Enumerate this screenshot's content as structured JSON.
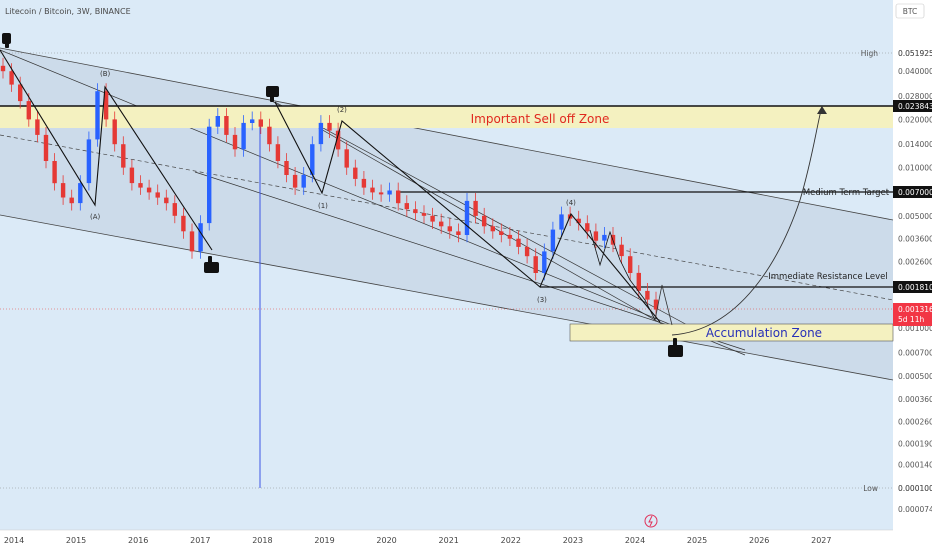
{
  "header": {
    "title": "Litecoin / Bitcoin, 3W, BINANCE",
    "currency_badge": "BTC"
  },
  "price_axis": {
    "ticks": [
      "0.051925",
      "0.040000",
      "0.028000",
      "0.020000",
      "0.014000",
      "0.010000",
      "0.005000",
      "0.003600",
      "0.002600",
      "0.001000",
      "0.000700",
      "0.000500",
      "0.000360",
      "0.000260",
      "0.000190",
      "0.000140",
      "0.000100",
      "0.000074"
    ],
    "high": {
      "label": "High",
      "value": "0.051925"
    },
    "low": {
      "label": "Low",
      "value": "0.000100"
    },
    "sell_zone_top": "0.023843",
    "medium_target": "0.007000",
    "resistance": "0.001810",
    "current": {
      "price": "0.001316",
      "countdown": "5d 11h"
    }
  },
  "time_axis": [
    "2014",
    "2015",
    "2016",
    "2017",
    "2018",
    "2019",
    "2020",
    "2021",
    "2022",
    "2023",
    "2024",
    "2025",
    "2026",
    "2027"
  ],
  "annotations": {
    "sell_zone": "Important Sell off Zone",
    "accumulation_zone": "Accumulation Zone",
    "medium_term_target": "Medium Term Target",
    "immediate_resistance": "Immediate Resistance Level",
    "waves": [
      "(B)",
      "(A)",
      "(2)",
      "(1)",
      "(4)",
      "(3)"
    ]
  },
  "colors": {
    "up": "#2962ff",
    "down": "#e53935",
    "zone": "#f4f1c0",
    "channel": "#c7d6e6",
    "background": "#dbeaf7"
  },
  "chart_data": {
    "type": "candlestick",
    "series": [
      {
        "values": [
          0.04,
          0.033,
          0.026,
          0.02,
          0.016,
          0.011,
          0.008,
          0.0065,
          0.006,
          0.008,
          0.015,
          0.03,
          0.02,
          0.014,
          0.01,
          0.008,
          0.0075,
          0.007,
          0.0065,
          0.006,
          0.005,
          0.004,
          0.003,
          0.0045,
          0.018,
          0.021,
          0.016,
          0.013,
          0.019,
          0.02,
          0.018,
          0.014,
          0.011,
          0.009,
          0.0075,
          0.009,
          0.014,
          0.019,
          0.017,
          0.013,
          0.01,
          0.0085,
          0.0075,
          0.007,
          0.0068,
          0.0072,
          0.006,
          0.0055,
          0.0052,
          0.005,
          0.0046,
          0.0043,
          0.004,
          0.0038,
          0.0062,
          0.005,
          0.0043,
          0.004,
          0.0038,
          0.0036,
          0.0032,
          0.0028,
          0.0022,
          0.003,
          0.0041,
          0.0051,
          0.0048,
          0.0045,
          0.004,
          0.0035,
          0.0038,
          0.0033,
          0.0028,
          0.0022,
          0.0017,
          0.0015,
          0.0013
        ]
      }
    ]
  }
}
